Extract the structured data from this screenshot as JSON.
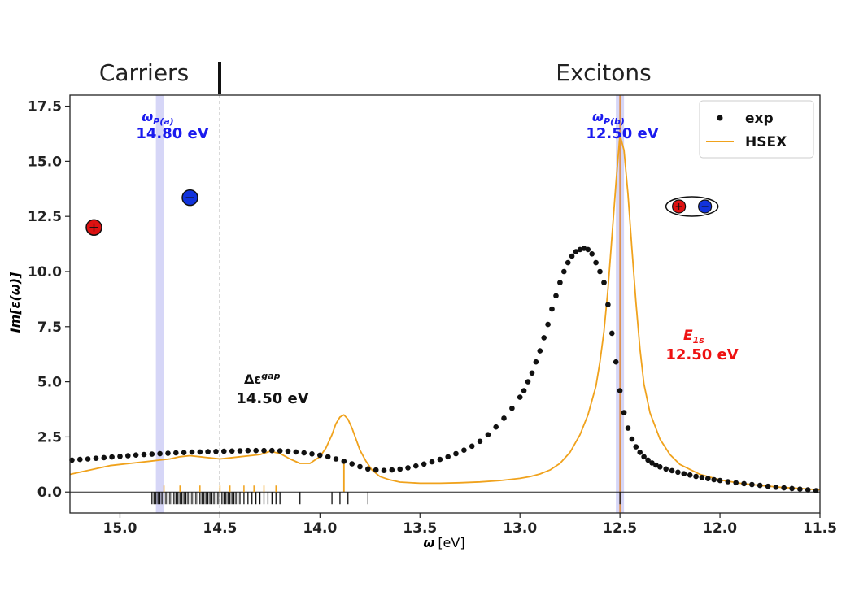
{
  "chart_data": {
    "type": "line",
    "xlabel": "ω [eV]",
    "xlabel_symbol": "ω",
    "xlabel_unit": "[eV]",
    "ylabel": "Im[ε(ω)]",
    "xlim": [
      15.25,
      11.5
    ],
    "x_reversed": true,
    "ylim": [
      -0.95,
      18.0
    ],
    "x_ticks": [
      "15.0",
      "14.5",
      "14.0",
      "13.5",
      "13.0",
      "12.5",
      "12.0",
      "11.5"
    ],
    "x_tick_values": [
      15.0,
      14.5,
      14.0,
      13.5,
      13.0,
      12.5,
      12.0,
      11.5
    ],
    "y_ticks": [
      "0.0",
      "2.5",
      "5.0",
      "7.5",
      "10.0",
      "12.5",
      "15.0",
      "17.5"
    ],
    "y_tick_values": [
      0.0,
      2.5,
      5.0,
      7.5,
      10.0,
      12.5,
      15.0,
      17.5
    ],
    "grid": false,
    "legend_position": "top-right",
    "series": [
      {
        "name": "exp",
        "kind": "scatter",
        "color": "#111111",
        "x": [
          15.24,
          15.2,
          15.16,
          15.12,
          15.08,
          15.04,
          15.0,
          14.96,
          14.92,
          14.88,
          14.84,
          14.8,
          14.76,
          14.72,
          14.68,
          14.64,
          14.6,
          14.56,
          14.52,
          14.48,
          14.44,
          14.4,
          14.36,
          14.32,
          14.28,
          14.24,
          14.2,
          14.16,
          14.12,
          14.08,
          14.04,
          14.0,
          13.96,
          13.92,
          13.88,
          13.84,
          13.8,
          13.76,
          13.72,
          13.68,
          13.64,
          13.6,
          13.56,
          13.52,
          13.48,
          13.44,
          13.4,
          13.36,
          13.32,
          13.28,
          13.24,
          13.2,
          13.16,
          13.12,
          13.08,
          13.04,
          13.0,
          12.98,
          12.96,
          12.94,
          12.92,
          12.9,
          12.88,
          12.86,
          12.84,
          12.82,
          12.8,
          12.78,
          12.76,
          12.74,
          12.72,
          12.7,
          12.68,
          12.66,
          12.64,
          12.62,
          12.6,
          12.58,
          12.56,
          12.54,
          12.52,
          12.5,
          12.48,
          12.46,
          12.44,
          12.42,
          12.4,
          12.38,
          12.36,
          12.34,
          12.32,
          12.3,
          12.27,
          12.24,
          12.21,
          12.18,
          12.15,
          12.12,
          12.09,
          12.06,
          12.03,
          12.0,
          11.96,
          11.92,
          11.88,
          11.84,
          11.8,
          11.76,
          11.72,
          11.68,
          11.64,
          11.6,
          11.56,
          11.52
        ],
        "y": [
          1.45,
          1.48,
          1.5,
          1.53,
          1.56,
          1.59,
          1.62,
          1.65,
          1.68,
          1.7,
          1.72,
          1.74,
          1.76,
          1.78,
          1.79,
          1.81,
          1.82,
          1.83,
          1.84,
          1.85,
          1.86,
          1.87,
          1.88,
          1.88,
          1.88,
          1.88,
          1.87,
          1.85,
          1.82,
          1.78,
          1.73,
          1.67,
          1.6,
          1.5,
          1.4,
          1.28,
          1.15,
          1.05,
          1.0,
          0.98,
          1.0,
          1.04,
          1.1,
          1.18,
          1.27,
          1.37,
          1.48,
          1.6,
          1.74,
          1.9,
          2.08,
          2.3,
          2.6,
          2.95,
          3.35,
          3.8,
          4.3,
          4.6,
          5.0,
          5.4,
          5.9,
          6.4,
          7.0,
          7.6,
          8.3,
          8.9,
          9.5,
          10.0,
          10.4,
          10.7,
          10.9,
          11.0,
          11.05,
          11.0,
          10.8,
          10.4,
          10.0,
          9.5,
          8.5,
          7.2,
          5.9,
          4.6,
          3.6,
          2.9,
          2.4,
          2.05,
          1.8,
          1.6,
          1.45,
          1.32,
          1.22,
          1.14,
          1.05,
          0.97,
          0.9,
          0.83,
          0.77,
          0.71,
          0.66,
          0.61,
          0.56,
          0.52,
          0.47,
          0.42,
          0.38,
          0.34,
          0.3,
          0.26,
          0.22,
          0.19,
          0.16,
          0.13,
          0.1,
          0.06
        ]
      },
      {
        "name": "HSEX",
        "kind": "line",
        "color": "#f0a21c",
        "x": [
          15.25,
          15.2,
          15.15,
          15.1,
          15.05,
          15.0,
          14.95,
          14.9,
          14.85,
          14.8,
          14.75,
          14.7,
          14.65,
          14.6,
          14.55,
          14.5,
          14.45,
          14.4,
          14.35,
          14.3,
          14.25,
          14.2,
          14.15,
          14.1,
          14.05,
          14.0,
          13.97,
          13.94,
          13.92,
          13.9,
          13.88,
          13.86,
          13.84,
          13.82,
          13.8,
          13.77,
          13.74,
          13.7,
          13.65,
          13.6,
          13.5,
          13.4,
          13.3,
          13.2,
          13.1,
          13.0,
          12.95,
          12.9,
          12.85,
          12.8,
          12.75,
          12.7,
          12.66,
          12.62,
          12.6,
          12.58,
          12.56,
          12.54,
          12.52,
          12.5,
          12.48,
          12.46,
          12.44,
          12.42,
          12.4,
          12.38,
          12.35,
          12.3,
          12.25,
          12.2,
          12.1,
          12.0,
          11.9,
          11.8,
          11.7,
          11.6,
          11.5
        ],
        "y": [
          0.8,
          0.9,
          1.0,
          1.1,
          1.2,
          1.25,
          1.3,
          1.35,
          1.4,
          1.45,
          1.5,
          1.6,
          1.65,
          1.6,
          1.55,
          1.5,
          1.55,
          1.6,
          1.65,
          1.7,
          1.85,
          1.75,
          1.5,
          1.3,
          1.3,
          1.6,
          2.0,
          2.6,
          3.1,
          3.4,
          3.5,
          3.3,
          2.9,
          2.4,
          1.9,
          1.4,
          1.0,
          0.7,
          0.55,
          0.45,
          0.4,
          0.4,
          0.42,
          0.46,
          0.52,
          0.62,
          0.7,
          0.82,
          1.0,
          1.3,
          1.8,
          2.6,
          3.5,
          4.8,
          5.9,
          7.3,
          9.2,
          11.6,
          14.0,
          16.2,
          15.5,
          13.5,
          11.0,
          8.6,
          6.5,
          4.9,
          3.6,
          2.4,
          1.7,
          1.25,
          0.8,
          0.55,
          0.4,
          0.3,
          0.22,
          0.16,
          0.1
        ]
      }
    ],
    "vlines": [
      {
        "x": 14.5,
        "style": "dashed",
        "color": "#444444"
      },
      {
        "x": 14.8,
        "style": "band",
        "color": "#c8c8f4"
      },
      {
        "x": 12.5,
        "style": "band",
        "color": "#c8c8f4"
      },
      {
        "x": 12.5,
        "style": "solid",
        "color": "#e08a3a"
      },
      {
        "x": 13.88,
        "style": "solid-short",
        "color": "#f0a21c",
        "ymin": 0.0,
        "ymax": 1.4
      }
    ],
    "transition_ticks": {
      "black": [
        14.84,
        14.83,
        14.82,
        14.81,
        14.8,
        14.79,
        14.78,
        14.77,
        14.76,
        14.75,
        14.74,
        14.73,
        14.72,
        14.71,
        14.7,
        14.69,
        14.68,
        14.67,
        14.66,
        14.65,
        14.64,
        14.63,
        14.62,
        14.61,
        14.6,
        14.59,
        14.58,
        14.57,
        14.56,
        14.55,
        14.54,
        14.53,
        14.52,
        14.51,
        14.5,
        14.49,
        14.48,
        14.47,
        14.46,
        14.45,
        14.44,
        14.43,
        14.42,
        14.41,
        14.4,
        14.38,
        14.36,
        14.34,
        14.32,
        14.3,
        14.28,
        14.26,
        14.24,
        14.22,
        14.2,
        14.1,
        13.94,
        13.9,
        13.86,
        13.76,
        12.5
      ],
      "orange": [
        14.78,
        14.7,
        14.6,
        14.5,
        14.45,
        14.38,
        14.33,
        14.28,
        14.22
      ]
    },
    "regions": [
      {
        "label": "Carriers"
      },
      {
        "label": "Excitons"
      }
    ],
    "region_divider_x": 14.5,
    "annotations": {
      "wp_a_label": "ω",
      "wp_a_sub": "P(a)",
      "wp_a_value": "14.80 eV",
      "wp_b_label": "ω",
      "wp_b_sub": "P(b)",
      "wp_b_value": "12.50 eV",
      "e1s_label": "E",
      "e1s_sub": "1s",
      "e1s_value": "12.50 eV",
      "gap_label": "Δε",
      "gap_sup": "gap",
      "gap_value": "14.50 eV"
    },
    "particle_icons": [
      {
        "kind": "hole",
        "x": 15.13,
        "y": 12.0,
        "color": "#dd1111"
      },
      {
        "kind": "electron",
        "x": 14.65,
        "y": 13.35,
        "color": "#1133dd"
      },
      {
        "kind": "exciton",
        "x": 12.14,
        "y": 12.95
      }
    ]
  }
}
